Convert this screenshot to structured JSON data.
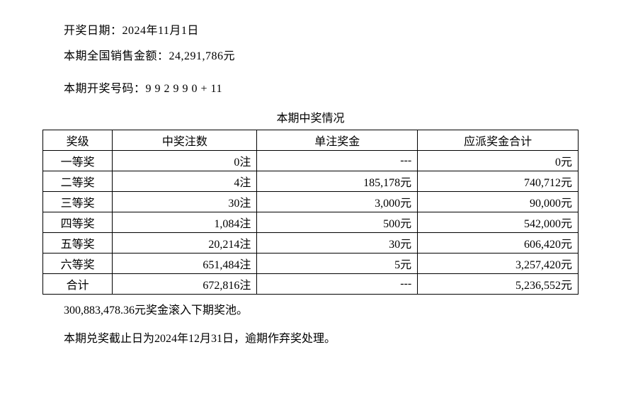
{
  "header": {
    "draw_date_label": "开奖日期：",
    "draw_date_value": "2024年11月1日",
    "sales_label": "本期全国销售金额：",
    "sales_value": "24,291,786元",
    "numbers_label": "本期开奖号码：",
    "numbers_value": "9 9 2 9 9 0 + 11"
  },
  "table": {
    "title": "本期中奖情况",
    "columns": [
      "奖级",
      "中奖注数",
      "单注奖金",
      "应派奖金合计"
    ],
    "rows": [
      {
        "tier": "一等奖",
        "count": "0注",
        "unit": "---",
        "total": "0元"
      },
      {
        "tier": "二等奖",
        "count": "4注",
        "unit": "185,178元",
        "total": "740,712元"
      },
      {
        "tier": "三等奖",
        "count": "30注",
        "unit": "3,000元",
        "total": "90,000元"
      },
      {
        "tier": "四等奖",
        "count": "1,084注",
        "unit": "500元",
        "total": "542,000元"
      },
      {
        "tier": "五等奖",
        "count": "20,214注",
        "unit": "30元",
        "total": "606,420元"
      },
      {
        "tier": "六等奖",
        "count": "651,484注",
        "unit": "5元",
        "total": "3,257,420元"
      },
      {
        "tier": "合计",
        "count": "672,816注",
        "unit": "---",
        "total": "5,236,552元"
      }
    ]
  },
  "footer": {
    "rollover": "300,883,478.36元奖金滚入下期奖池。",
    "deadline": "本期兑奖截止日为2024年12月31日，逾期作弃奖处理。"
  }
}
